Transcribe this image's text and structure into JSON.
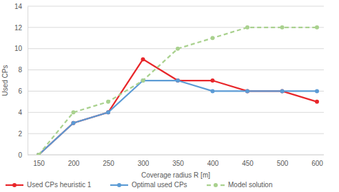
{
  "chart_data": {
    "type": "line",
    "x_label": "Coverage radius R [m]",
    "y_label": "Used CPs",
    "categories": [
      "150",
      "200",
      "250",
      "300",
      "350",
      "400",
      "450",
      "500",
      "600"
    ],
    "series": [
      {
        "name": "Used CPs heuristic 1",
        "color": "#e8262a",
        "marker": "circle",
        "line_style": "solid",
        "values": [
          0,
          3,
          4,
          9,
          7,
          7,
          6,
          6,
          5
        ]
      },
      {
        "name": "Optimal used CPs",
        "color": "#5b9bd5",
        "marker": "circle",
        "line_style": "solid",
        "values": [
          0,
          3,
          4,
          7,
          7,
          6,
          6,
          6,
          6
        ]
      },
      {
        "name": "Model solution",
        "color": "#a9d18e",
        "marker": "circle",
        "line_style": "dashed",
        "values": [
          0,
          4,
          5,
          7,
          10,
          11,
          12,
          12,
          12
        ]
      }
    ],
    "ylim": [
      0,
      14
    ],
    "yticks": [
      0,
      2,
      4,
      6,
      8,
      10,
      12,
      14
    ],
    "grid": true,
    "legend": "bottom"
  }
}
